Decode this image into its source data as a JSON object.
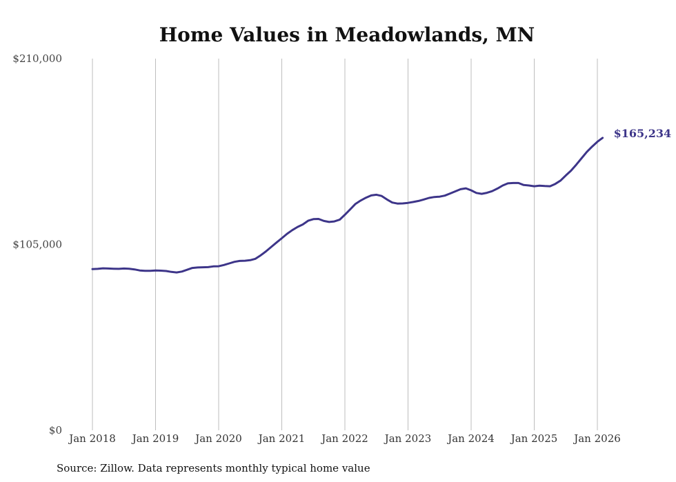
{
  "chart_data": {
    "type": "line",
    "title": "Home Values in Meadowlands, MN",
    "xlabel": "",
    "ylabel": "",
    "ylim": [
      0,
      210000
    ],
    "y_ticks": [
      {
        "value": 0,
        "label": "$0"
      },
      {
        "value": 105000,
        "label": "$105,000"
      },
      {
        "value": 210000,
        "label": "$210,000"
      }
    ],
    "x_ticks": [
      {
        "value": 2018,
        "label": "Jan 2018"
      },
      {
        "value": 2019,
        "label": "Jan 2019"
      },
      {
        "value": 2020,
        "label": "Jan 2020"
      },
      {
        "value": 2021,
        "label": "Jan 2021"
      },
      {
        "value": 2022,
        "label": "Jan 2022"
      },
      {
        "value": 2023,
        "label": "Jan 2023"
      },
      {
        "value": 2024,
        "label": "Jan 2024"
      },
      {
        "value": 2025,
        "label": "Jan 2025"
      },
      {
        "value": 2026,
        "label": "Jan 2026"
      }
    ],
    "xlim": [
      2018,
      2026
    ],
    "grid": "vertical",
    "series": [
      {
        "name": "Typical home value",
        "color": "#3d3589",
        "x": [
          2018.0,
          2018.083,
          2018.167,
          2018.25,
          2018.333,
          2018.417,
          2018.5,
          2018.583,
          2018.667,
          2018.75,
          2018.833,
          2018.917,
          2019.0,
          2019.083,
          2019.167,
          2019.25,
          2019.333,
          2019.417,
          2019.5,
          2019.583,
          2019.667,
          2019.75,
          2019.833,
          2019.917,
          2020.0,
          2020.083,
          2020.167,
          2020.25,
          2020.333,
          2020.417,
          2020.5,
          2020.583,
          2020.667,
          2020.75,
          2020.833,
          2020.917,
          2021.0,
          2021.083,
          2021.167,
          2021.25,
          2021.333,
          2021.417,
          2021.5,
          2021.583,
          2021.667,
          2021.75,
          2021.833,
          2021.917,
          2022.0,
          2022.083,
          2022.167,
          2022.25,
          2022.333,
          2022.417,
          2022.5,
          2022.583,
          2022.667,
          2022.75,
          2022.833,
          2022.917,
          2023.0,
          2023.083,
          2023.167,
          2023.25,
          2023.333,
          2023.417,
          2023.5,
          2023.583,
          2023.667,
          2023.75,
          2023.833,
          2023.917,
          2024.0,
          2024.083,
          2024.167,
          2024.25,
          2024.333,
          2024.417,
          2024.5,
          2024.583,
          2024.667,
          2024.75,
          2024.833,
          2024.917,
          2025.0,
          2025.083,
          2025.167,
          2025.25,
          2025.333,
          2025.417,
          2025.5,
          2025.583,
          2025.667,
          2025.75,
          2025.833,
          2025.917,
          2026.0,
          2026.083
        ],
        "values": [
          91100,
          91200,
          91500,
          91400,
          91300,
          91200,
          91400,
          91300,
          90900,
          90300,
          90100,
          90100,
          90300,
          90200,
          90000,
          89500,
          89200,
          89700,
          90700,
          91700,
          92000,
          92100,
          92200,
          92600,
          92700,
          93400,
          94300,
          95200,
          95700,
          95800,
          96100,
          96900,
          98900,
          101100,
          103600,
          106100,
          108500,
          111000,
          113100,
          114900,
          116300,
          118400,
          119300,
          119400,
          118300,
          117700,
          118000,
          119000,
          121800,
          124800,
          127900,
          129800,
          131400,
          132700,
          133100,
          132400,
          130400,
          128700,
          128100,
          128200,
          128500,
          129000,
          129600,
          130400,
          131300,
          131800,
          132000,
          132600,
          133800,
          135000,
          136200,
          136700,
          135600,
          134100,
          133600,
          134200,
          135100,
          136600,
          138300,
          139500,
          139700,
          139700,
          138600,
          138300,
          137900,
          138200,
          138000,
          137900,
          139200,
          141100,
          144000,
          146700,
          150100,
          153700,
          157300,
          160300,
          163000,
          165234
        ]
      }
    ],
    "end_label": "$165,234",
    "source": "Source: Zillow. Data represents monthly typical home value"
  }
}
